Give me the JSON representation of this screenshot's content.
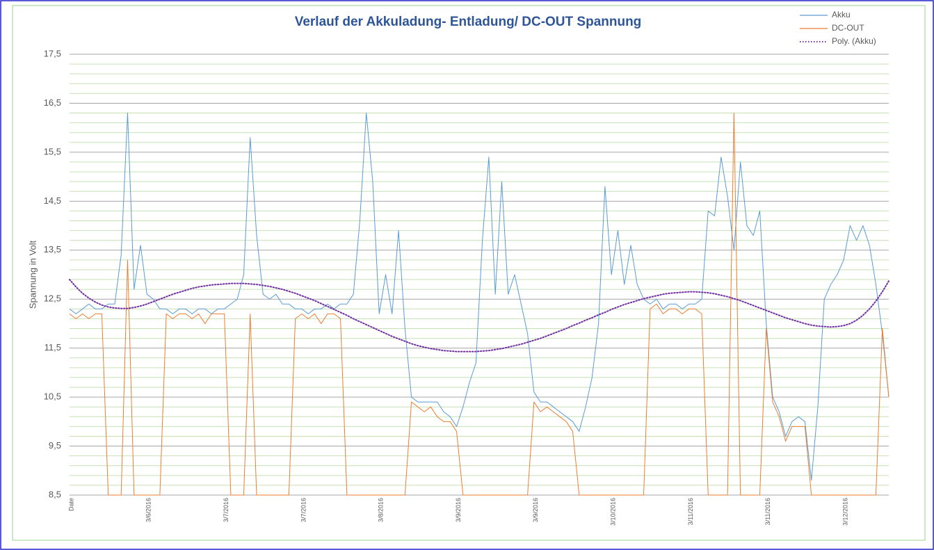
{
  "chart_data": {
    "type": "line",
    "title": "Verlauf der Akkuladung- Entladung/ DC-OUT Spannung",
    "y_label": "Spannung in Volt",
    "categories": [
      "Date",
      null,
      null,
      null,
      null,
      null,
      null,
      null,
      null,
      null,
      null,
      null,
      "3/6/2016",
      null,
      null,
      null,
      null,
      null,
      null,
      null,
      null,
      null,
      null,
      null,
      "3/7/2016",
      null,
      null,
      null,
      null,
      null,
      null,
      null,
      null,
      null,
      null,
      null,
      "3/7/2016",
      null,
      null,
      null,
      null,
      null,
      null,
      null,
      null,
      null,
      null,
      null,
      "3/8/2016",
      null,
      null,
      null,
      null,
      null,
      null,
      null,
      null,
      null,
      null,
      null,
      "3/9/2016",
      null,
      null,
      null,
      null,
      null,
      null,
      null,
      null,
      null,
      null,
      null,
      "3/9/2016",
      null,
      null,
      null,
      null,
      null,
      null,
      null,
      null,
      null,
      null,
      null,
      "3/10/2016",
      null,
      null,
      null,
      null,
      null,
      null,
      null,
      null,
      null,
      null,
      null,
      "3/11/2016",
      null,
      null,
      null,
      null,
      null,
      null,
      null,
      null,
      null,
      null,
      null,
      "3/11/2016",
      null,
      null,
      null,
      null,
      null,
      null,
      null,
      null,
      null,
      null,
      null,
      "3/12/2016",
      null,
      null,
      null,
      null,
      null,
      null,
      null
    ],
    "series": [
      {
        "name": "Akku",
        "color": "#5b9bd5",
        "style": "solid",
        "values": [
          12.3,
          12.2,
          12.3,
          12.4,
          12.3,
          12.3,
          12.4,
          12.4,
          13.4,
          16.3,
          12.7,
          13.6,
          12.6,
          12.5,
          12.3,
          12.3,
          12.2,
          12.3,
          12.3,
          12.2,
          12.3,
          12.3,
          12.2,
          12.3,
          12.3,
          12.4,
          12.5,
          13.0,
          15.8,
          13.8,
          12.6,
          12.5,
          12.6,
          12.4,
          12.4,
          12.3,
          12.3,
          12.2,
          12.3,
          12.3,
          12.4,
          12.3,
          12.4,
          12.4,
          12.6,
          14.1,
          16.3,
          14.9,
          12.2,
          13.0,
          12.2,
          13.9,
          11.9,
          10.5,
          10.4,
          10.4,
          10.4,
          10.4,
          10.2,
          10.1,
          9.9,
          10.3,
          10.8,
          11.2,
          13.7,
          15.4,
          12.6,
          14.9,
          12.6,
          13.0,
          12.4,
          11.8,
          10.6,
          10.4,
          10.4,
          10.3,
          10.2,
          10.1,
          10.0,
          9.8,
          10.3,
          10.9,
          12.0,
          14.8,
          13.0,
          13.9,
          12.8,
          13.6,
          12.8,
          12.5,
          12.4,
          12.5,
          12.3,
          12.4,
          12.4,
          12.3,
          12.4,
          12.4,
          12.5,
          14.3,
          14.2,
          15.4,
          14.6,
          13.5,
          15.3,
          14.0,
          13.8,
          14.3,
          12.0,
          10.5,
          10.2,
          9.7,
          10.0,
          10.1,
          10.0,
          8.8,
          10.3,
          12.5,
          12.8,
          13.0,
          13.3,
          14.0,
          13.7,
          14.0,
          13.6,
          12.8,
          11.8,
          10.5
        ]
      },
      {
        "name": "DC-OUT",
        "color": "#ed7d31",
        "style": "solid",
        "values": [
          12.2,
          12.1,
          12.2,
          12.1,
          12.2,
          12.2,
          8.5,
          8.5,
          8.5,
          13.3,
          8.5,
          8.5,
          8.5,
          8.5,
          8.5,
          12.2,
          12.1,
          12.2,
          12.2,
          12.1,
          12.2,
          12.0,
          12.2,
          12.2,
          12.2,
          8.5,
          8.5,
          8.5,
          12.2,
          8.5,
          8.5,
          8.5,
          8.5,
          8.5,
          8.5,
          12.1,
          12.2,
          12.1,
          12.2,
          12.0,
          12.2,
          12.2,
          12.1,
          8.5,
          8.5,
          8.5,
          8.5,
          8.5,
          8.5,
          8.5,
          8.5,
          8.5,
          8.5,
          10.4,
          10.3,
          10.2,
          10.3,
          10.1,
          10.0,
          10.0,
          9.8,
          8.5,
          8.5,
          8.5,
          8.5,
          8.5,
          8.5,
          8.5,
          8.5,
          8.5,
          8.5,
          8.5,
          10.4,
          10.2,
          10.3,
          10.2,
          10.1,
          10.0,
          9.8,
          8.5,
          8.5,
          8.5,
          8.5,
          8.5,
          8.5,
          8.5,
          8.5,
          8.5,
          8.5,
          8.5,
          12.3,
          12.4,
          12.2,
          12.3,
          12.3,
          12.2,
          12.3,
          12.3,
          12.2,
          8.5,
          8.5,
          8.5,
          8.5,
          16.3,
          8.5,
          8.5,
          8.5,
          8.5,
          11.9,
          10.4,
          10.1,
          9.6,
          9.9,
          9.9,
          9.9,
          8.5,
          8.5,
          8.5,
          8.5,
          8.5,
          8.5,
          8.5,
          8.5,
          8.5,
          8.5,
          8.5,
          11.9,
          10.5
        ]
      },
      {
        "name": "Poly. (Akku)",
        "color": "#7030a0",
        "style": "dotted",
        "values": [
          12.9,
          12.75,
          12.62,
          12.52,
          12.44,
          12.38,
          12.34,
          12.32,
          12.31,
          12.31,
          12.33,
          12.36,
          12.4,
          12.45,
          12.5,
          12.55,
          12.6,
          12.64,
          12.68,
          12.72,
          12.75,
          12.77,
          12.79,
          12.8,
          12.81,
          12.82,
          12.82,
          12.82,
          12.81,
          12.8,
          12.78,
          12.76,
          12.73,
          12.7,
          12.66,
          12.62,
          12.57,
          12.52,
          12.47,
          12.41,
          12.35,
          12.29,
          12.23,
          12.17,
          12.1,
          12.04,
          11.98,
          11.92,
          11.86,
          11.8,
          11.74,
          11.69,
          11.64,
          11.59,
          11.55,
          11.52,
          11.49,
          11.47,
          11.45,
          11.44,
          11.43,
          11.43,
          11.43,
          11.43,
          11.44,
          11.45,
          11.47,
          11.49,
          11.52,
          11.55,
          11.58,
          11.62,
          11.66,
          11.7,
          11.75,
          11.8,
          11.85,
          11.9,
          11.96,
          12.01,
          12.07,
          12.12,
          12.18,
          12.23,
          12.29,
          12.34,
          12.39,
          12.43,
          12.47,
          12.51,
          12.54,
          12.57,
          12.6,
          12.62,
          12.63,
          12.64,
          12.65,
          12.65,
          12.64,
          12.63,
          12.61,
          12.58,
          12.55,
          12.51,
          12.47,
          12.42,
          12.37,
          12.32,
          12.27,
          12.22,
          12.17,
          12.12,
          12.08,
          12.04,
          12.0,
          11.97,
          11.95,
          11.94,
          11.93,
          11.94,
          11.96,
          12.0,
          12.07,
          12.17,
          12.3,
          12.46,
          12.65,
          12.87
        ]
      }
    ],
    "ylim": [
      8.5,
      17.5
    ],
    "yticks": [
      {
        "value": 8.5,
        "label": "8,5"
      },
      {
        "value": 9.5,
        "label": "9,5"
      },
      {
        "value": 10.5,
        "label": "10,5"
      },
      {
        "value": 11.5,
        "label": "11,5"
      },
      {
        "value": 12.5,
        "label": "12,5"
      },
      {
        "value": 13.5,
        "label": "13,5"
      },
      {
        "value": 14.5,
        "label": "14,5"
      },
      {
        "value": 15.5,
        "label": "15,5"
      },
      {
        "value": 16.5,
        "label": "16,5"
      },
      {
        "value": 17.5,
        "label": "17,5"
      }
    ],
    "minor_yticks": [
      8.7,
      8.9,
      9.1,
      9.3,
      9.7,
      9.9,
      10.1,
      10.3,
      10.7,
      10.9,
      11.1,
      11.3,
      11.7,
      11.9,
      12.1,
      12.3,
      12.7,
      12.9,
      13.1,
      13.3,
      13.7,
      13.9,
      14.1,
      14.3,
      14.7,
      14.9,
      15.1,
      15.3,
      15.7,
      15.9,
      16.1,
      16.3,
      16.7,
      16.9,
      17.1,
      17.3
    ],
    "grid": true,
    "minor_grid_color": "#c6e0b4",
    "grid_color": "#a6a6a6",
    "legend": "upper right"
  }
}
